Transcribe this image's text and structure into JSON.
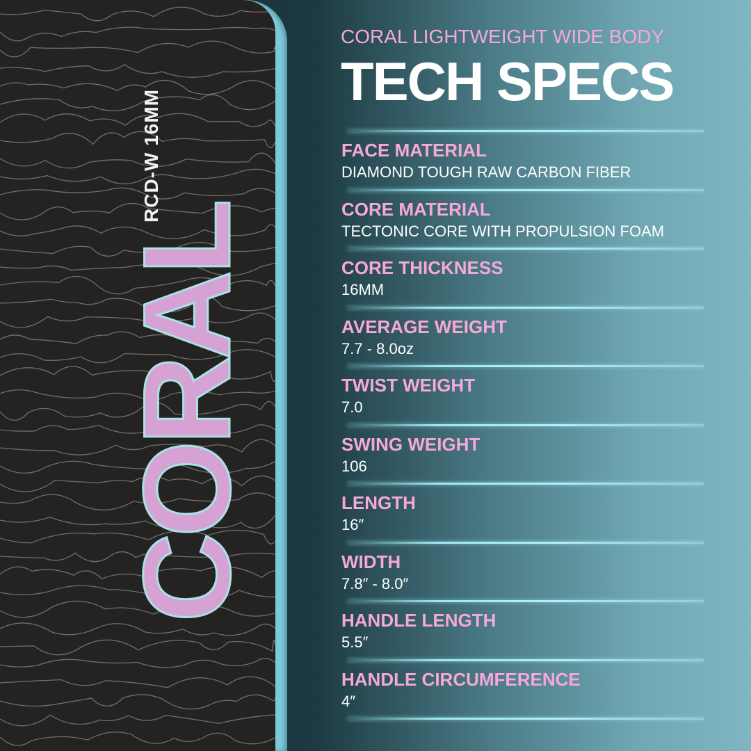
{
  "paddle": {
    "brand": "CORAL",
    "model": "RCD-W 16MM"
  },
  "header": {
    "subtitle": "CORAL LIGHTWEIGHT WIDE BODY",
    "title": "TECH SPECS"
  },
  "specs": [
    {
      "label": "FACE MATERIAL",
      "value": "DIAMOND TOUGH RAW CARBON FIBER"
    },
    {
      "label": "CORE MATERIAL",
      "value": "TECTONIC CORE WITH PROPULSION FOAM"
    },
    {
      "label": "CORE THICKNESS",
      "value": "16MM"
    },
    {
      "label": "AVERAGE WEIGHT",
      "value": "7.7 - 8.0oz"
    },
    {
      "label": "TWIST WEIGHT",
      "value": "7.0"
    },
    {
      "label": "SWING WEIGHT",
      "value": "106"
    },
    {
      "label": "LENGTH",
      "value": "16″"
    },
    {
      "label": "WIDTH",
      "value": "7.8″ - 8.0″"
    },
    {
      "label": "HANDLE LENGTH",
      "value": "5.5″"
    },
    {
      "label": "HANDLE CIRCUMFERENCE",
      "value": "4″"
    }
  ],
  "colors": {
    "label": "#f6a8d8",
    "value": "#ffffff",
    "edge": "#7cc9dc",
    "brand": "#d6a2d4"
  }
}
